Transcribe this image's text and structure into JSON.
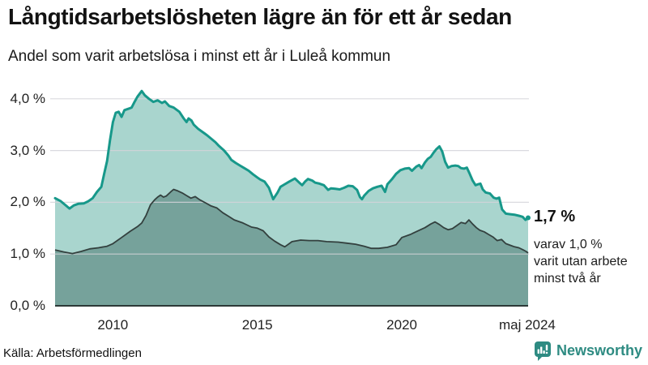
{
  "header": {
    "title": "Långtidsarbetslösheten lägre än för ett år sedan",
    "subtitle": "Andel som varit arbetslösa i minst ett år i Luleå kommun"
  },
  "annotation": {
    "value": "1,7 %",
    "lines": [
      "varav 1,0 %",
      "varit utan arbete",
      "minst två år"
    ]
  },
  "footer": {
    "source": "Källa: Arbetsförmedlingen",
    "brand": "Newsworthy"
  },
  "colors": {
    "line_total": "#17988a",
    "area_total": "#a9d5ce",
    "area_two_years": "#76a29b",
    "line_two_years": "#33403e",
    "grid": "#d4d4da",
    "axis": "#2c3937",
    "brand": "#2e8b82",
    "tick_text": "#222222",
    "title_text": "#121212"
  },
  "chart_data": {
    "type": "area",
    "title": "Långtidsarbetslösheten lägre än för ett år sedan",
    "subtitle": "Andel som varit arbetslösa i minst ett år i Luleå kommun",
    "x_unit": "decimal_year",
    "x_range": [
      2008.0,
      2024.37
    ],
    "ylim": [
      0,
      4.35
    ],
    "grid": "horizontal",
    "legend_position": "none",
    "y_ticks": [
      {
        "v": 0,
        "label": "0,0 %"
      },
      {
        "v": 1,
        "label": "1,0 %"
      },
      {
        "v": 2,
        "label": "2,0 %"
      },
      {
        "v": 3,
        "label": "3,0 %"
      },
      {
        "v": 4,
        "label": "4,0 %"
      }
    ],
    "x_ticks": [
      {
        "t": 2010,
        "label": "2010"
      },
      {
        "t": 2015,
        "label": "2015"
      },
      {
        "t": 2020,
        "label": "2020"
      },
      {
        "t": 2024.34,
        "label": "maj 2024"
      }
    ],
    "series": [
      {
        "name": "Arbetslösa minst ett år",
        "latest_label": "1,7 %",
        "points": [
          [
            2008.0,
            2.08
          ],
          [
            2008.2,
            2.02
          ],
          [
            2008.35,
            1.95
          ],
          [
            2008.5,
            1.88
          ],
          [
            2008.65,
            1.94
          ],
          [
            2008.8,
            1.97
          ],
          [
            2009.0,
            1.98
          ],
          [
            2009.15,
            2.02
          ],
          [
            2009.3,
            2.08
          ],
          [
            2009.45,
            2.2
          ],
          [
            2009.6,
            2.3
          ],
          [
            2009.7,
            2.55
          ],
          [
            2009.8,
            2.8
          ],
          [
            2009.9,
            3.2
          ],
          [
            2010.0,
            3.55
          ],
          [
            2010.1,
            3.73
          ],
          [
            2010.2,
            3.75
          ],
          [
            2010.3,
            3.65
          ],
          [
            2010.4,
            3.78
          ],
          [
            2010.55,
            3.81
          ],
          [
            2010.65,
            3.83
          ],
          [
            2010.75,
            3.94
          ],
          [
            2010.85,
            4.04
          ],
          [
            2011.0,
            4.15
          ],
          [
            2011.1,
            4.07
          ],
          [
            2011.25,
            4.0
          ],
          [
            2011.4,
            3.94
          ],
          [
            2011.55,
            3.97
          ],
          [
            2011.7,
            3.92
          ],
          [
            2011.8,
            3.95
          ],
          [
            2011.95,
            3.86
          ],
          [
            2012.1,
            3.83
          ],
          [
            2012.3,
            3.75
          ],
          [
            2012.45,
            3.62
          ],
          [
            2012.55,
            3.55
          ],
          [
            2012.62,
            3.62
          ],
          [
            2012.72,
            3.58
          ],
          [
            2012.8,
            3.5
          ],
          [
            2012.95,
            3.42
          ],
          [
            2013.1,
            3.36
          ],
          [
            2013.25,
            3.3
          ],
          [
            2013.4,
            3.23
          ],
          [
            2013.55,
            3.16
          ],
          [
            2013.65,
            3.1
          ],
          [
            2013.85,
            3.0
          ],
          [
            2014.0,
            2.9
          ],
          [
            2014.1,
            2.82
          ],
          [
            2014.25,
            2.76
          ],
          [
            2014.4,
            2.71
          ],
          [
            2014.55,
            2.66
          ],
          [
            2014.7,
            2.61
          ],
          [
            2014.85,
            2.54
          ],
          [
            2015.0,
            2.48
          ],
          [
            2015.1,
            2.44
          ],
          [
            2015.25,
            2.4
          ],
          [
            2015.4,
            2.28
          ],
          [
            2015.55,
            2.06
          ],
          [
            2015.7,
            2.19
          ],
          [
            2015.8,
            2.3
          ],
          [
            2015.95,
            2.35
          ],
          [
            2016.1,
            2.4
          ],
          [
            2016.3,
            2.46
          ],
          [
            2016.45,
            2.38
          ],
          [
            2016.55,
            2.33
          ],
          [
            2016.65,
            2.4
          ],
          [
            2016.75,
            2.45
          ],
          [
            2016.9,
            2.42
          ],
          [
            2017.0,
            2.38
          ],
          [
            2017.15,
            2.36
          ],
          [
            2017.3,
            2.33
          ],
          [
            2017.45,
            2.24
          ],
          [
            2017.55,
            2.27
          ],
          [
            2017.7,
            2.26
          ],
          [
            2017.85,
            2.25
          ],
          [
            2018.0,
            2.28
          ],
          [
            2018.15,
            2.32
          ],
          [
            2018.3,
            2.31
          ],
          [
            2018.45,
            2.24
          ],
          [
            2018.55,
            2.1
          ],
          [
            2018.62,
            2.06
          ],
          [
            2018.7,
            2.13
          ],
          [
            2018.85,
            2.22
          ],
          [
            2019.0,
            2.27
          ],
          [
            2019.15,
            2.3
          ],
          [
            2019.3,
            2.32
          ],
          [
            2019.42,
            2.2
          ],
          [
            2019.5,
            2.35
          ],
          [
            2019.65,
            2.44
          ],
          [
            2019.8,
            2.55
          ],
          [
            2019.95,
            2.62
          ],
          [
            2020.1,
            2.65
          ],
          [
            2020.25,
            2.66
          ],
          [
            2020.35,
            2.61
          ],
          [
            2020.5,
            2.69
          ],
          [
            2020.6,
            2.72
          ],
          [
            2020.68,
            2.66
          ],
          [
            2020.8,
            2.77
          ],
          [
            2020.9,
            2.84
          ],
          [
            2021.0,
            2.88
          ],
          [
            2021.1,
            2.96
          ],
          [
            2021.2,
            3.03
          ],
          [
            2021.3,
            3.08
          ],
          [
            2021.4,
            2.98
          ],
          [
            2021.5,
            2.78
          ],
          [
            2021.6,
            2.67
          ],
          [
            2021.72,
            2.7
          ],
          [
            2021.85,
            2.71
          ],
          [
            2021.95,
            2.7
          ],
          [
            2022.05,
            2.66
          ],
          [
            2022.15,
            2.65
          ],
          [
            2022.25,
            2.67
          ],
          [
            2022.35,
            2.55
          ],
          [
            2022.45,
            2.42
          ],
          [
            2022.55,
            2.33
          ],
          [
            2022.65,
            2.35
          ],
          [
            2022.72,
            2.36
          ],
          [
            2022.8,
            2.25
          ],
          [
            2022.9,
            2.19
          ],
          [
            2023.05,
            2.17
          ],
          [
            2023.18,
            2.09
          ],
          [
            2023.27,
            2.07
          ],
          [
            2023.37,
            2.09
          ],
          [
            2023.47,
            1.86
          ],
          [
            2023.6,
            1.78
          ],
          [
            2023.75,
            1.77
          ],
          [
            2023.9,
            1.76
          ],
          [
            2024.05,
            1.74
          ],
          [
            2024.18,
            1.72
          ],
          [
            2024.28,
            1.66
          ],
          [
            2024.37,
            1.7
          ]
        ]
      },
      {
        "name": "Varav utan arbete minst två år",
        "latest_label": "1,0 %",
        "points": [
          [
            2008.0,
            1.08
          ],
          [
            2008.3,
            1.04
          ],
          [
            2008.6,
            1.01
          ],
          [
            2008.9,
            1.05
          ],
          [
            2009.2,
            1.1
          ],
          [
            2009.5,
            1.12
          ],
          [
            2009.8,
            1.15
          ],
          [
            2010.0,
            1.2
          ],
          [
            2010.3,
            1.32
          ],
          [
            2010.6,
            1.44
          ],
          [
            2010.85,
            1.53
          ],
          [
            2011.0,
            1.6
          ],
          [
            2011.15,
            1.75
          ],
          [
            2011.3,
            1.95
          ],
          [
            2011.45,
            2.05
          ],
          [
            2011.55,
            2.1
          ],
          [
            2011.65,
            2.14
          ],
          [
            2011.75,
            2.1
          ],
          [
            2011.85,
            2.12
          ],
          [
            2012.0,
            2.2
          ],
          [
            2012.1,
            2.25
          ],
          [
            2012.25,
            2.22
          ],
          [
            2012.4,
            2.18
          ],
          [
            2012.55,
            2.13
          ],
          [
            2012.7,
            2.08
          ],
          [
            2012.85,
            2.11
          ],
          [
            2013.0,
            2.05
          ],
          [
            2013.2,
            1.99
          ],
          [
            2013.4,
            1.93
          ],
          [
            2013.6,
            1.89
          ],
          [
            2013.8,
            1.8
          ],
          [
            2014.0,
            1.73
          ],
          [
            2014.2,
            1.66
          ],
          [
            2014.5,
            1.6
          ],
          [
            2014.8,
            1.52
          ],
          [
            2015.0,
            1.5
          ],
          [
            2015.2,
            1.45
          ],
          [
            2015.4,
            1.33
          ],
          [
            2015.6,
            1.25
          ],
          [
            2015.8,
            1.18
          ],
          [
            2015.95,
            1.14
          ],
          [
            2016.2,
            1.24
          ],
          [
            2016.5,
            1.27
          ],
          [
            2016.8,
            1.26
          ],
          [
            2017.1,
            1.26
          ],
          [
            2017.4,
            1.24
          ],
          [
            2017.8,
            1.23
          ],
          [
            2018.1,
            1.21
          ],
          [
            2018.4,
            1.19
          ],
          [
            2018.7,
            1.15
          ],
          [
            2018.95,
            1.11
          ],
          [
            2019.2,
            1.11
          ],
          [
            2019.5,
            1.13
          ],
          [
            2019.8,
            1.18
          ],
          [
            2020.0,
            1.32
          ],
          [
            2020.3,
            1.38
          ],
          [
            2020.6,
            1.46
          ],
          [
            2020.8,
            1.51
          ],
          [
            2021.0,
            1.58
          ],
          [
            2021.15,
            1.62
          ],
          [
            2021.3,
            1.57
          ],
          [
            2021.45,
            1.51
          ],
          [
            2021.6,
            1.47
          ],
          [
            2021.75,
            1.49
          ],
          [
            2021.9,
            1.55
          ],
          [
            2022.05,
            1.61
          ],
          [
            2022.2,
            1.59
          ],
          [
            2022.32,
            1.66
          ],
          [
            2022.45,
            1.58
          ],
          [
            2022.58,
            1.51
          ],
          [
            2022.7,
            1.46
          ],
          [
            2022.85,
            1.43
          ],
          [
            2023.0,
            1.38
          ],
          [
            2023.15,
            1.33
          ],
          [
            2023.3,
            1.26
          ],
          [
            2023.45,
            1.28
          ],
          [
            2023.6,
            1.2
          ],
          [
            2023.75,
            1.17
          ],
          [
            2023.9,
            1.14
          ],
          [
            2024.05,
            1.12
          ],
          [
            2024.2,
            1.08
          ],
          [
            2024.3,
            1.05
          ],
          [
            2024.37,
            1.02
          ]
        ]
      }
    ]
  }
}
